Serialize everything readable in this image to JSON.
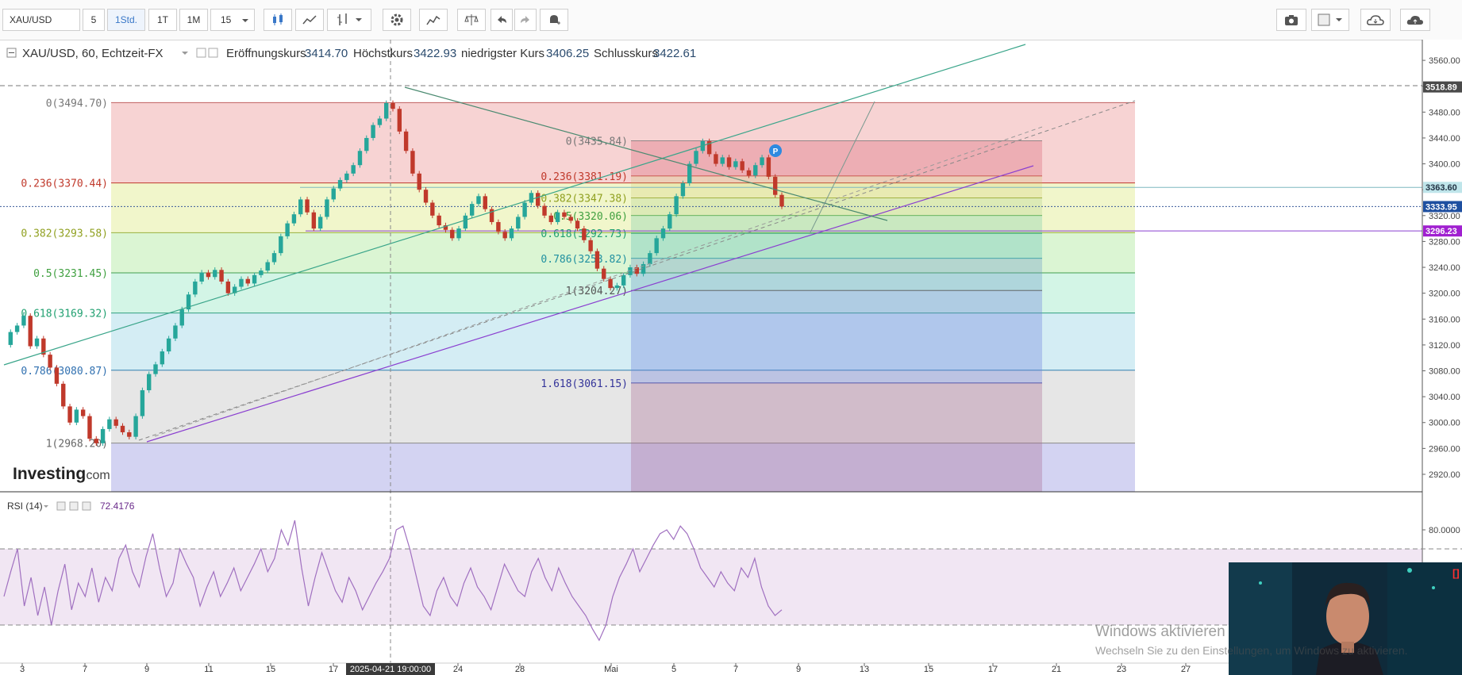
{
  "toolbar": {
    "symbol": "XAU/USD",
    "intervals": [
      "5",
      "1Std.",
      "1T",
      "1M",
      "15"
    ],
    "active_interval": "1Std."
  },
  "legend": {
    "instrument": "XAU/USD, 60, Echtzeit-FX",
    "open_label": "Eröffnungskurs",
    "open_value": "3414.70",
    "high_label": "Höchstkurs",
    "high_value": "3422.93",
    "low_label": "niedrigster Kurs",
    "low_value": "3406.25",
    "close_label": "Schlusskurs",
    "close_value": "3422.61"
  },
  "brand": {
    "text": "Investing",
    "suffix": ".com"
  },
  "rsi": {
    "label": "RSI (14)",
    "value": "72.4176"
  },
  "crosshair": {
    "time": "2025-04-21 19:00:00"
  },
  "price_labels": {
    "top": "3518.89",
    "horizontal": "3363.60",
    "last": "3333.95",
    "purple_line": "3296.23"
  },
  "pivot_marker": "P",
  "watermark": {
    "title": "Windows aktivieren",
    "subtitle": "Wechseln Sie zu den Einstellungen, um Windows zu aktivieren."
  },
  "colors": {
    "up": "#26a69a",
    "down": "#c0392b",
    "rsi": "#a070c0",
    "purple_line": "#8a3fd0",
    "teal_line": "#3aa58a"
  },
  "chart_data": [
    {
      "type": "candlestick",
      "title": "XAU/USD, 60, Echtzeit-FX",
      "y_ticks": [
        3560,
        3520,
        3480,
        3440,
        3400,
        3360,
        3320,
        3280,
        3240,
        3200,
        3160,
        3120,
        3080,
        3040,
        3000,
        2960,
        2920
      ],
      "x_ticks": [
        "3",
        "7",
        "9",
        "11",
        "15",
        "17",
        "24",
        "28",
        "Mai",
        "5",
        "7",
        "9",
        "13",
        "15",
        "17",
        "21",
        "23",
        "27"
      ],
      "ylim": [
        2893,
        3592
      ],
      "price_path": [
        3120,
        3140,
        3150,
        3165,
        3118,
        3130,
        3105,
        3085,
        3060,
        3025,
        3000,
        3020,
        3010,
        2975,
        2968,
        2990,
        3005,
        2995,
        2985,
        2978,
        3010,
        3050,
        3075,
        3090,
        3110,
        3130,
        3150,
        3175,
        3198,
        3218,
        3232,
        3225,
        3236,
        3218,
        3200,
        3210,
        3222,
        3215,
        3228,
        3235,
        3248,
        3262,
        3288,
        3308,
        3322,
        3345,
        3325,
        3300,
        3318,
        3345,
        3362,
        3375,
        3385,
        3398,
        3420,
        3440,
        3460,
        3470,
        3494,
        3485,
        3450,
        3420,
        3385,
        3360,
        3340,
        3320,
        3305,
        3298,
        3285,
        3300,
        3320,
        3338,
        3350,
        3330,
        3310,
        3295,
        3285,
        3300,
        3318,
        3340,
        3355,
        3335,
        3320,
        3310,
        3325,
        3318,
        3312,
        3300,
        3282,
        3265,
        3238,
        3222,
        3208,
        3212,
        3228,
        3240,
        3230,
        3245,
        3262,
        3285,
        3300,
        3322,
        3350,
        3370,
        3400,
        3420,
        3435,
        3415,
        3400,
        3410,
        3395,
        3404,
        3390,
        3382,
        3398,
        3410,
        3380,
        3352,
        3334
      ],
      "fib_retracement_1": {
        "levels": [
          {
            "ratio": "0",
            "value": 3494.7
          },
          {
            "ratio": "0.236",
            "value": 3370.44
          },
          {
            "ratio": "0.382",
            "value": 3293.58
          },
          {
            "ratio": "0.5",
            "value": 3231.45
          },
          {
            "ratio": "0.618",
            "value": 3169.32
          },
          {
            "ratio": "0.786",
            "value": 3080.87
          },
          {
            "ratio": "1",
            "value": 2968.2
          }
        ]
      },
      "fib_retracement_2": {
        "levels": [
          {
            "ratio": "0",
            "value": 3435.84
          },
          {
            "ratio": "0.236",
            "value": 3381.19
          },
          {
            "ratio": "0.382",
            "value": 3347.38
          },
          {
            "ratio": "0.5",
            "value": 3320.06
          },
          {
            "ratio": "0.618",
            "value": 3292.73
          },
          {
            "ratio": "0.786",
            "value": 3253.82
          },
          {
            "ratio": "1",
            "value": 3204.27
          },
          {
            "ratio": "1.618",
            "value": 3061.15
          }
        ]
      }
    },
    {
      "type": "line",
      "title": "RSI (14)",
      "y_ticks": [
        80
      ],
      "ylim": [
        10,
        100
      ],
      "levels": [
        70,
        30
      ],
      "values": [
        45,
        58,
        70,
        40,
        55,
        35,
        50,
        30,
        48,
        62,
        38,
        52,
        45,
        60,
        42,
        55,
        48,
        65,
        72,
        58,
        50,
        66,
        78,
        60,
        45,
        52,
        70,
        62,
        55,
        40,
        50,
        58,
        45,
        52,
        60,
        48,
        55,
        62,
        70,
        58,
        65,
        80,
        72,
        85,
        60,
        40,
        55,
        68,
        58,
        48,
        42,
        55,
        48,
        38,
        45,
        52,
        58,
        65,
        80,
        82,
        70,
        55,
        40,
        35,
        48,
        55,
        45,
        40,
        52,
        60,
        50,
        45,
        38,
        50,
        62,
        55,
        48,
        45,
        58,
        65,
        55,
        48,
        60,
        52,
        45,
        40,
        35,
        28,
        22,
        30,
        45,
        55,
        62,
        70,
        58,
        65,
        72,
        78,
        80,
        75,
        82,
        78,
        70,
        60,
        55,
        50,
        58,
        52,
        48,
        60,
        55,
        65,
        50,
        40,
        35,
        38
      ]
    }
  ]
}
